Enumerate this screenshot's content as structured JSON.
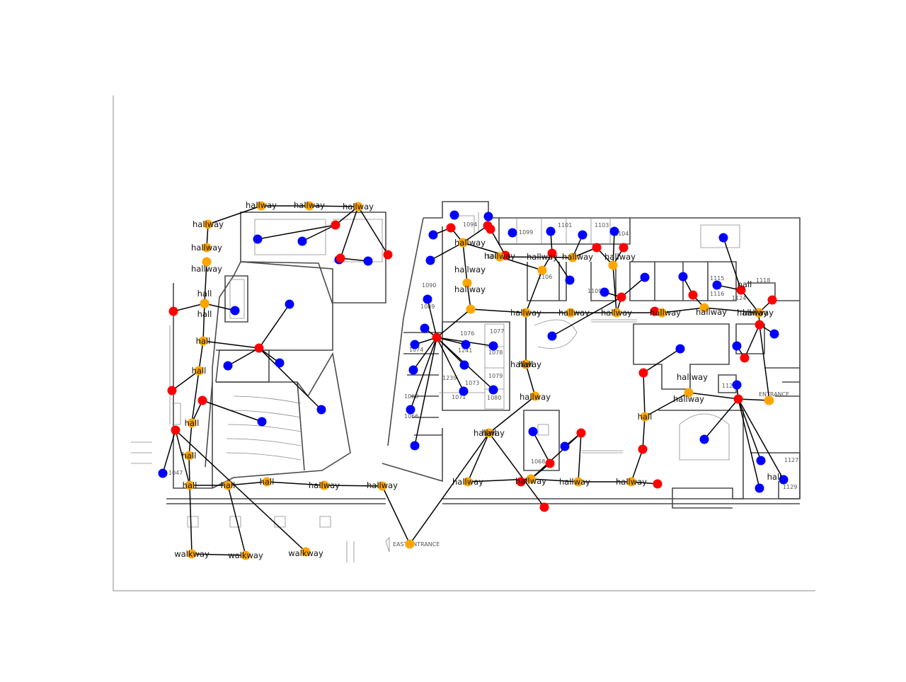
{
  "colors": {
    "room_node": "#0000ff",
    "door_node": "#ff0000",
    "hallway_node": "#ffa500",
    "edge": "#000000",
    "axis": "#888888",
    "background": "#ffffff"
  },
  "map": {
    "room_numbers": [
      "1094",
      "1099",
      "1101",
      "1103",
      "1104",
      "1106",
      "1109",
      "1090",
      "1089",
      "1076",
      "1077",
      "1078",
      "1241",
      "1074",
      "1073",
      "1239",
      "1079",
      "1080",
      "1071",
      "1068",
      "1066",
      "1115",
      "1116",
      "1118",
      "1124",
      "1125",
      "1129",
      "1127",
      "1047",
      "1068",
      "1080"
    ],
    "entrances": [
      "EAST ENTRANCE",
      "ENTRANCE"
    ]
  },
  "graph": {
    "hallway_nodes": [
      {
        "label": "hallway"
      },
      {
        "label": "hallway"
      },
      {
        "label": "hallway"
      },
      {
        "label": "hallway"
      },
      {
        "label": "hallway"
      },
      {
        "label": "hallway"
      },
      {
        "label": "hall"
      },
      {
        "label": "hall"
      },
      {
        "label": "hall"
      },
      {
        "label": "hall"
      },
      {
        "label": "hall"
      },
      {
        "label": "hall"
      },
      {
        "label": "hall"
      },
      {
        "label": "hall"
      },
      {
        "label": "hall"
      },
      {
        "label": "hallway"
      },
      {
        "label": "hallway"
      },
      {
        "label": "walkway"
      },
      {
        "label": "walkway"
      },
      {
        "label": "walkway"
      },
      {
        "label": "hallway"
      },
      {
        "label": "hallway"
      },
      {
        "label": "hallway"
      },
      {
        "label": "hallway"
      },
      {
        "label": "hallway"
      },
      {
        "label": "hallway"
      },
      {
        "label": "hallway"
      },
      {
        "label": "hallway"
      },
      {
        "label": "hallway"
      },
      {
        "label": "hallway"
      },
      {
        "label": "hallway"
      },
      {
        "label": "hallway"
      },
      {
        "label": "hallway"
      },
      {
        "label": "hallway"
      },
      {
        "label": "hallway"
      },
      {
        "label": "hall"
      },
      {
        "label": "hallway"
      },
      {
        "label": "hall"
      },
      {
        "label": "hallway"
      },
      {
        "label": "hallway"
      },
      {
        "label": "hallway"
      },
      {
        "label": "hallway"
      },
      {
        "label": "hall"
      },
      {
        "label": "hallway"
      },
      {
        "label": "hallway"
      },
      {
        "label": "hallway"
      },
      {
        "label": "hall"
      },
      {
        "label": "hall"
      }
    ]
  }
}
